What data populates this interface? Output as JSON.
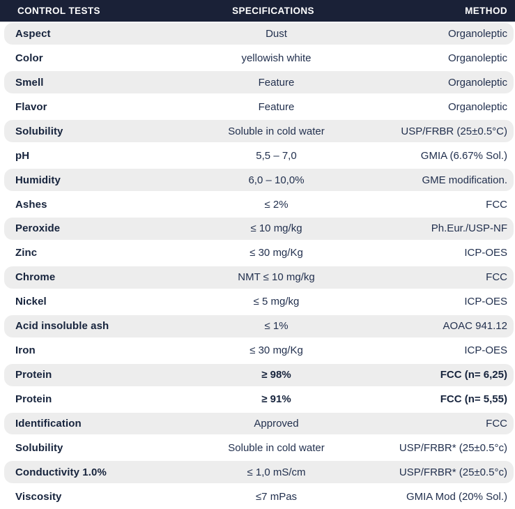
{
  "table": {
    "columns": [
      "CONTROL TESTS",
      "SPECIFICATIONS",
      "METHOD"
    ],
    "rows": [
      {
        "test": "Aspect",
        "spec": "Dust",
        "method": "Organoleptic",
        "emphasis": false
      },
      {
        "test": "Color",
        "spec": "yellowish white",
        "method": "Organoleptic",
        "emphasis": false
      },
      {
        "test": "Smell",
        "spec": "Feature",
        "method": "Organoleptic",
        "emphasis": false
      },
      {
        "test": "Flavor",
        "spec": "Feature",
        "method": "Organoleptic",
        "emphasis": false
      },
      {
        "test": "Solubility",
        "spec": "Soluble in cold water",
        "method": "USP/FRBR (25±0.5°C)",
        "emphasis": false
      },
      {
        "test": "pH",
        "spec": "5,5 – 7,0",
        "method": "GMIA (6.67% Sol.)",
        "emphasis": false
      },
      {
        "test": "Humidity",
        "spec": "6,0 – 10,0%",
        "method": "GME modification.",
        "emphasis": false
      },
      {
        "test": "Ashes",
        "spec": "≤ 2%",
        "method": "FCC",
        "emphasis": false
      },
      {
        "test": "Peroxide",
        "spec": "≤ 10 mg/kg",
        "method": "Ph.Eur./USP-NF",
        "emphasis": false
      },
      {
        "test": "Zinc",
        "spec": "≤ 30 mg/Kg",
        "method": "ICP-OES",
        "emphasis": false
      },
      {
        "test": "Chrome",
        "spec": "NMT ≤ 10 mg/kg",
        "method": "FCC",
        "emphasis": false
      },
      {
        "test": "Nickel",
        "spec": "≤ 5 mg/kg",
        "method": "ICP-OES",
        "emphasis": false
      },
      {
        "test": "Acid insoluble ash",
        "spec": "≤ 1%",
        "method": "AOAC 941.12",
        "emphasis": false
      },
      {
        "test": "Iron",
        "spec": "≤ 30 mg/Kg",
        "method": "ICP-OES",
        "emphasis": false
      },
      {
        "test": "Protein",
        "spec": "≥ 98%",
        "method": "FCC (n= 6,25)",
        "emphasis": true
      },
      {
        "test": "Protein",
        "spec": "≥ 91%",
        "method": "FCC (n= 5,55)",
        "emphasis": true
      },
      {
        "test": "Identification",
        "spec": "Approved",
        "method": "FCC",
        "emphasis": false
      },
      {
        "test": "Solubility",
        "spec": "Soluble in cold water",
        "method": "USP/FRBR* (25±0.5°c)",
        "emphasis": false
      },
      {
        "test": "Conductivity 1.0%",
        "spec": "≤ 1,0 mS/cm",
        "method": "USP/FRBR* (25±0.5°c)",
        "emphasis": false
      },
      {
        "test": "Viscosity",
        "spec": "≤7 mPas",
        "method": "GMIA Mod (20% Sol.)",
        "emphasis": false
      }
    ]
  },
  "colors": {
    "header_bg": "#1A2137",
    "header_text": "#FFFFFF",
    "row_alt_bg": "#EDEDED",
    "row_bg": "#FFFFFF",
    "test_text": "#16233C",
    "body_text": "#22304E"
  }
}
